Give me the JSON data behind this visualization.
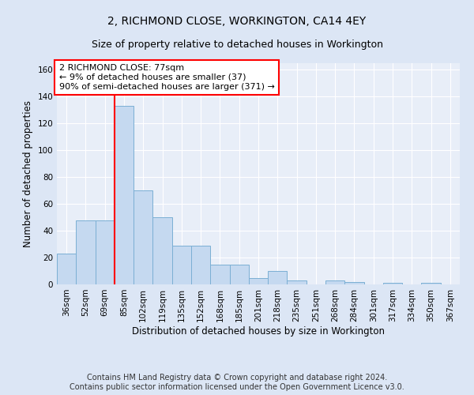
{
  "title": "2, RICHMOND CLOSE, WORKINGTON, CA14 4EY",
  "subtitle": "Size of property relative to detached houses in Workington",
  "xlabel": "Distribution of detached houses by size in Workington",
  "ylabel": "Number of detached properties",
  "categories": [
    "36sqm",
    "52sqm",
    "69sqm",
    "85sqm",
    "102sqm",
    "119sqm",
    "135sqm",
    "152sqm",
    "168sqm",
    "185sqm",
    "201sqm",
    "218sqm",
    "235sqm",
    "251sqm",
    "268sqm",
    "284sqm",
    "301sqm",
    "317sqm",
    "334sqm",
    "350sqm",
    "367sqm"
  ],
  "bar_heights": [
    23,
    48,
    48,
    133,
    70,
    50,
    29,
    29,
    15,
    15,
    5,
    10,
    3,
    0,
    3,
    2,
    0,
    1,
    0,
    1,
    0
  ],
  "bar_color": "#c5d9f0",
  "bar_edge_color": "#7bafd4",
  "annotation_text_line1": "2 RICHMOND CLOSE: 77sqm",
  "annotation_text_line2": "← 9% of detached houses are smaller (37)",
  "annotation_text_line3": "90% of semi-detached houses are larger (371) →",
  "annotation_box_color": "white",
  "annotation_box_edge_color": "red",
  "vline_color": "red",
  "vline_x": 2.5,
  "ylim": [
    0,
    165
  ],
  "yticks": [
    0,
    20,
    40,
    60,
    80,
    100,
    120,
    140,
    160
  ],
  "bg_color": "#dce6f5",
  "plot_bg_color": "#e8eef8",
  "footer_line1": "Contains HM Land Registry data © Crown copyright and database right 2024.",
  "footer_line2": "Contains public sector information licensed under the Open Government Licence v3.0.",
  "title_fontsize": 10,
  "subtitle_fontsize": 9,
  "axis_label_fontsize": 8.5,
  "tick_fontsize": 7.5,
  "annotation_fontsize": 8,
  "footer_fontsize": 7
}
